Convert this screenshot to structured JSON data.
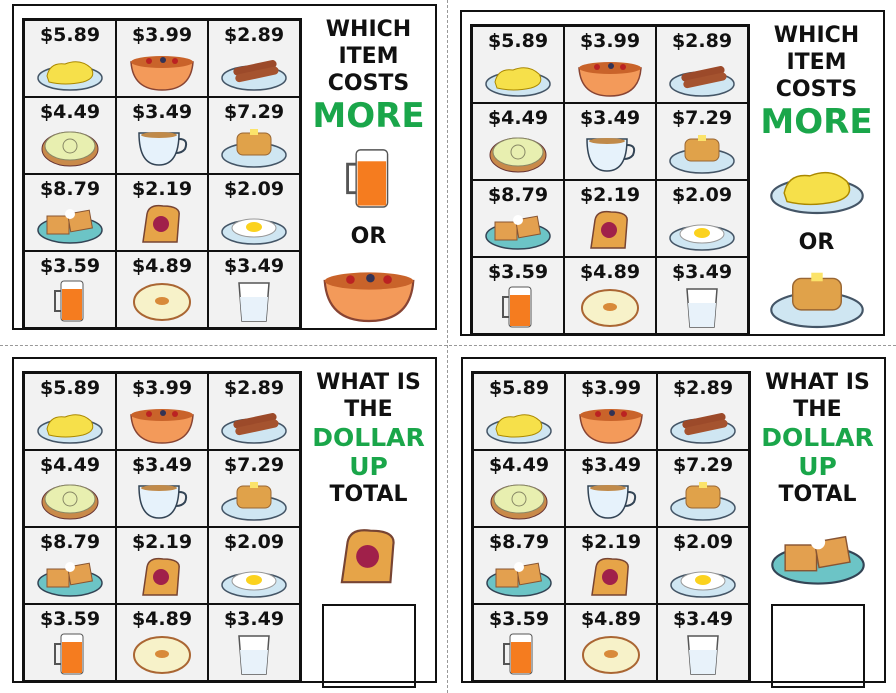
{
  "grid": [
    {
      "price": "$5.89",
      "icon": "scrambled-eggs-icon"
    },
    {
      "price": "$3.99",
      "icon": "cereal-bowl-icon"
    },
    {
      "price": "$2.89",
      "icon": "sausages-icon"
    },
    {
      "price": "$4.49",
      "icon": "cinnamon-roll-icon"
    },
    {
      "price": "$3.49",
      "icon": "coffee-cup-icon"
    },
    {
      "price": "$7.29",
      "icon": "pancakes-icon"
    },
    {
      "price": "$8.79",
      "icon": "waffles-icon"
    },
    {
      "price": "$2.19",
      "icon": "jam-toast-icon"
    },
    {
      "price": "$2.09",
      "icon": "fried-egg-icon"
    },
    {
      "price": "$3.59",
      "icon": "orange-juice-icon"
    },
    {
      "price": "$4.89",
      "icon": "bagel-icon"
    },
    {
      "price": "$3.49",
      "icon": "milk-glass-icon"
    }
  ],
  "cards": [
    {
      "type": "compare",
      "lines": [
        "WHICH",
        "ITEM",
        "COSTS"
      ],
      "highlight": "MORE",
      "or": "OR",
      "items": [
        "orange-juice-icon",
        "cereal-bowl-icon"
      ]
    },
    {
      "type": "compare",
      "lines": [
        "WHICH",
        "ITEM",
        "COSTS"
      ],
      "highlight": "MORE",
      "or": "OR",
      "items": [
        "scrambled-eggs-icon",
        "pancakes-icon"
      ]
    },
    {
      "type": "total",
      "lines": [
        "WHAT IS",
        "THE"
      ],
      "highlight_lines": [
        "DOLLAR",
        "UP"
      ],
      "last": "TOTAL",
      "items": [
        "jam-toast-icon"
      ]
    },
    {
      "type": "total",
      "lines": [
        "WHAT IS",
        "THE"
      ],
      "highlight_lines": [
        "DOLLAR",
        "UP"
      ],
      "last": "TOTAL",
      "items": [
        "waffles-icon"
      ]
    }
  ],
  "colors": {
    "accent": "#1aa64a"
  }
}
